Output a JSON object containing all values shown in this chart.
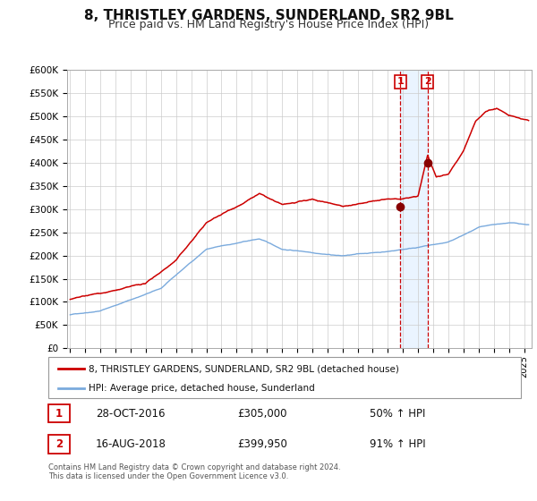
{
  "title": "8, THRISTLEY GARDENS, SUNDERLAND, SR2 9BL",
  "subtitle": "Price paid vs. HM Land Registry's House Price Index (HPI)",
  "ylim": [
    0,
    600000
  ],
  "yticks": [
    0,
    50000,
    100000,
    150000,
    200000,
    250000,
    300000,
    350000,
    400000,
    450000,
    500000,
    550000,
    600000
  ],
  "xlim_start": 1994.8,
  "xlim_end": 2025.5,
  "sale1_date": 2016.83,
  "sale1_price": 305000,
  "sale1_label": "28-OCT-2016",
  "sale1_pct": "50% ↑ HPI",
  "sale2_date": 2018.62,
  "sale2_price": 399950,
  "sale2_label": "16-AUG-2018",
  "sale2_pct": "91% ↑ HPI",
  "red_line_color": "#cc0000",
  "blue_line_color": "#7aaadd",
  "marker_color": "#880000",
  "vline_color": "#cc0000",
  "bg_shade_color": "#ddeeff",
  "grid_color": "#cccccc",
  "legend_label_red": "8, THRISTLEY GARDENS, SUNDERLAND, SR2 9BL (detached house)",
  "legend_label_blue": "HPI: Average price, detached house, Sunderland",
  "footer": "Contains HM Land Registry data © Crown copyright and database right 2024.\nThis data is licensed under the Open Government Licence v3.0.",
  "annotation_box_color": "#cc0000",
  "title_fontsize": 11,
  "subtitle_fontsize": 9
}
